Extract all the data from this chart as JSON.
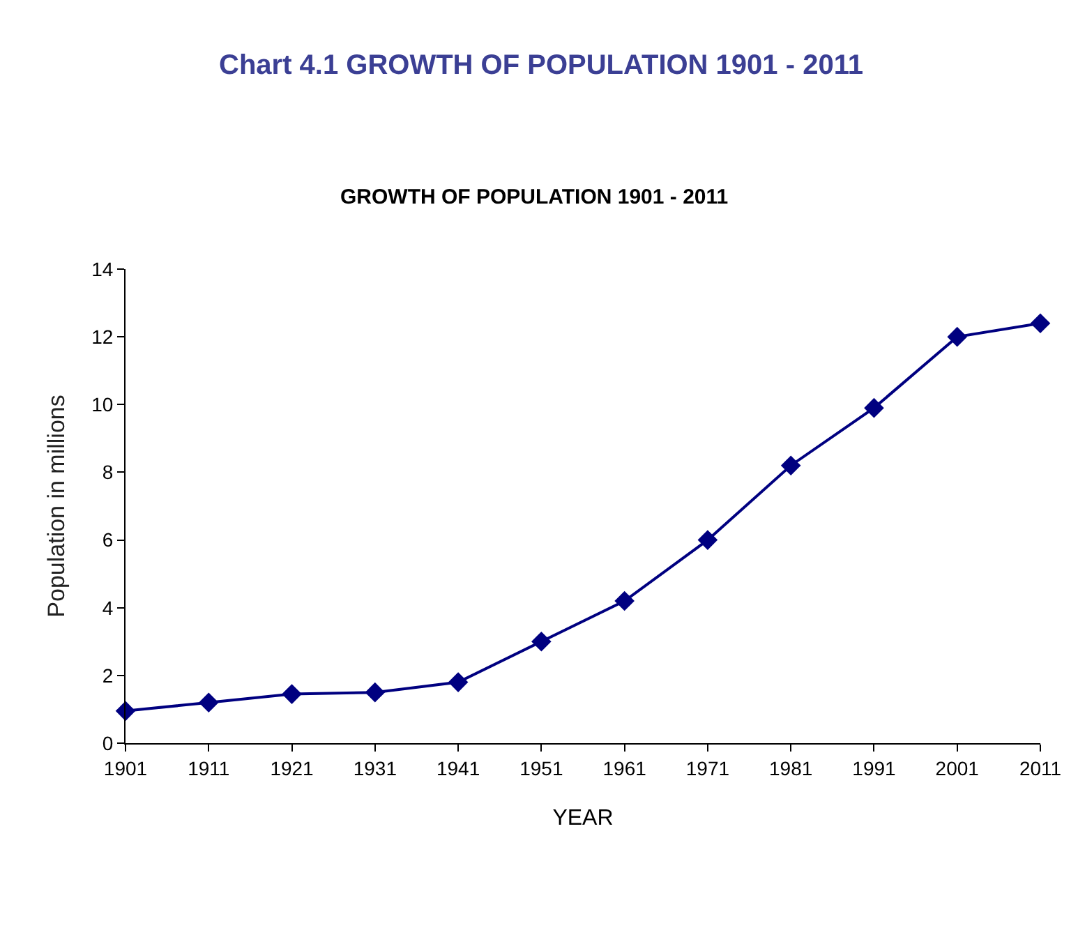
{
  "chart_data": {
    "type": "line",
    "title": "Chart 4.1 GROWTH OF POPULATION 1901 - 2011",
    "subtitle": "GROWTH OF POPULATION 1901 - 2011",
    "xlabel": "YEAR",
    "ylabel": "Population in millions",
    "x": [
      1901,
      1911,
      1921,
      1931,
      1941,
      1951,
      1961,
      1971,
      1981,
      1991,
      2001,
      2011
    ],
    "series": [
      {
        "color": "#000080",
        "values": [
          0.95,
          1.2,
          1.45,
          1.5,
          1.8,
          3.0,
          4.2,
          6.0,
          8.2,
          9.9,
          12.0,
          12.4
        ]
      }
    ],
    "xlim": [
      1901,
      2011
    ],
    "xticks": [
      1901,
      1911,
      1921,
      1931,
      1941,
      1951,
      1961,
      1971,
      1981,
      1991,
      2001,
      2011
    ],
    "ylim": [
      0,
      14
    ],
    "yticks": [
      0,
      2,
      4,
      6,
      8,
      10,
      12,
      14
    ],
    "marker": "diamond",
    "line_style": "solid"
  }
}
